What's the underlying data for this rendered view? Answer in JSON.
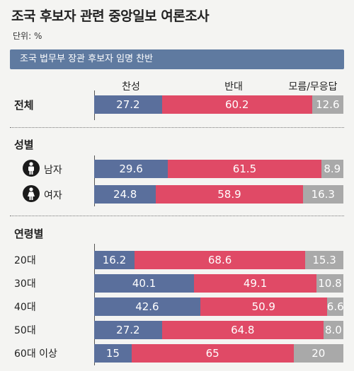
{
  "header": {
    "title": "조국 후보자 관련 중앙일보 여론조사",
    "unit": "단위: %",
    "banner": "조국 법무부 장관 후보자 임명 찬반"
  },
  "legend": {
    "yes": "찬성",
    "no": "반대",
    "dk": "모름/무응답"
  },
  "sections": {
    "overall": "전체",
    "gender": "성별",
    "age": "연령별"
  },
  "colors": {
    "yes": "#5a6f9c",
    "no": "#e04a66",
    "dk": "#a9a9a9",
    "banner": "#5f7aa0"
  },
  "icons": {
    "male": "male-person-icon",
    "female": "female-person-icon"
  },
  "chart_data": {
    "type": "bar",
    "stacked": true,
    "orientation": "horizontal",
    "categories": [
      "전체",
      "남자",
      "여자",
      "20대",
      "30대",
      "40대",
      "50대",
      "60대 이상"
    ],
    "series": [
      {
        "name": "찬성",
        "values": [
          27.2,
          29.6,
          24.8,
          16.2,
          40.1,
          42.6,
          27.2,
          15
        ]
      },
      {
        "name": "반대",
        "values": [
          60.2,
          61.5,
          58.9,
          68.6,
          49.1,
          50.9,
          64.8,
          65
        ]
      },
      {
        "name": "모름/무응답",
        "values": [
          12.6,
          8.9,
          16.3,
          15.3,
          10.8,
          6.6,
          8.0,
          20
        ]
      }
    ],
    "value_labels": [
      [
        "27.2",
        "60.2",
        "12.6"
      ],
      [
        "29.6",
        "61.5",
        "8.9"
      ],
      [
        "24.8",
        "58.9",
        "16.3"
      ],
      [
        "16.2",
        "68.6",
        "15.3"
      ],
      [
        "40.1",
        "49.1",
        "10.8"
      ],
      [
        "42.6",
        "50.9",
        "6.6"
      ],
      [
        "27.2",
        "64.8",
        "8.0"
      ],
      [
        "15",
        "65",
        "20"
      ]
    ],
    "xlim": [
      0,
      100
    ]
  }
}
